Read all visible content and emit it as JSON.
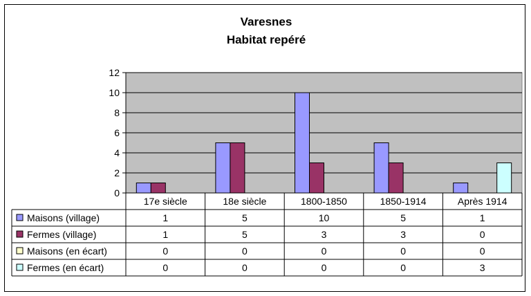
{
  "chart_data": {
    "type": "bar",
    "title": [
      "Varesnes",
      "Habitat repéré"
    ],
    "categories": [
      "17e siècle",
      "18e siècle",
      "1800-1850",
      "1850-1914",
      "Après 1914"
    ],
    "ylim": [
      0,
      12
    ],
    "yticks": [
      "0",
      "2",
      "4",
      "6",
      "8",
      "10",
      "12"
    ],
    "grid": true,
    "legend": "data-table",
    "plot_background": "#c0c0c0",
    "series": [
      {
        "name": "Maisons (village)",
        "color": "#9999ff",
        "values": [
          1,
          5,
          10,
          5,
          1
        ]
      },
      {
        "name": "Fermes (village)",
        "color": "#993366",
        "values": [
          1,
          5,
          3,
          3,
          0
        ]
      },
      {
        "name": "Maisons (en écart)",
        "color": "#ffffcc",
        "values": [
          0,
          0,
          0,
          0,
          0
        ]
      },
      {
        "name": "Fermes (en écart)",
        "color": "#ccffff",
        "values": [
          0,
          0,
          0,
          0,
          3
        ]
      }
    ]
  }
}
